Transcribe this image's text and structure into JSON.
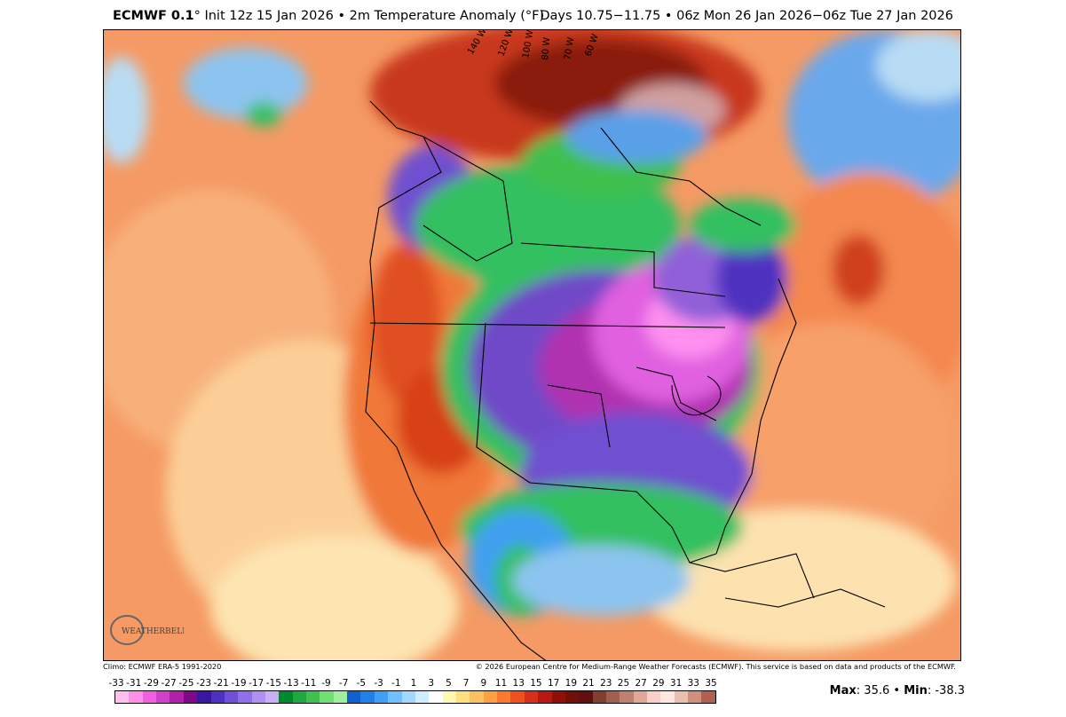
{
  "header": {
    "model": "ECMWF 0.1",
    "init_text": "° Init 12z 15 Jan 2026 • 2m Temperature Anomaly (°F)",
    "valid_text": "Days 10.75−11.75 • 06z Mon 26 Jan 2026−06z Tue 27 Jan 2026"
  },
  "footer": {
    "climo": "Climo: ECMWF ERA-5 1991-2020",
    "copyright": "© 2026 European Centre for Medium-Range Weather Forecasts (ECMWF). This service is based on data and products of the ECMWF."
  },
  "stats": {
    "max_label": "Max",
    "max_value": ": 35.6",
    "sep": " • ",
    "min_label": "Min",
    "min_value": ": -38.3"
  },
  "logo_text": "WEATHERBELL",
  "map_labels": [
    "140 W",
    "120 W",
    "100 W",
    "80 W",
    "70 W",
    "60 W"
  ],
  "colorbar": {
    "labels": [
      "-33",
      "-31",
      "-29",
      "-27",
      "-25",
      "-23",
      "-21",
      "-19",
      "-17",
      "-15",
      "-13",
      "-11",
      "-9",
      "-7",
      "-5",
      "-3",
      "-1",
      "1",
      "3",
      "5",
      "7",
      "9",
      "11",
      "13",
      "15",
      "17",
      "19",
      "21",
      "23",
      "25",
      "27",
      "29",
      "31",
      "33",
      "35"
    ],
    "colors": [
      "#ffc0f0",
      "#ff90e8",
      "#f060e0",
      "#d040c8",
      "#b020a8",
      "#800888",
      "#3818a0",
      "#5030c0",
      "#7050d8",
      "#9070e8",
      "#b090f0",
      "#c8b0f8",
      "#008830",
      "#20a840",
      "#40c050",
      "#70e070",
      "#a0f0a0",
      "#1060d0",
      "#2080e8",
      "#40a0f8",
      "#70c0ff",
      "#a0d8ff",
      "#d0ecff",
      "#ffffff",
      "#fff8b0",
      "#ffe080",
      "#ffc060",
      "#ffa040",
      "#ff7830",
      "#f05020",
      "#d83018",
      "#b81810",
      "#901008",
      "#701008",
      "#601010",
      "#804030",
      "#a06050",
      "#c08070",
      "#e0a898",
      "#f8d0c8",
      "#ffe8e0",
      "#e8c0b0",
      "#d09080",
      "#b06050"
    ],
    "fills": [
      "#ffc0f0",
      "#ff90e8",
      "#f060e0",
      "#d040c8",
      "#b020a8",
      "#800888",
      "#3818a0",
      "#5030c0",
      "#7050d8",
      "#9070e8",
      "#b090f0",
      "#c8b0f8",
      "#008830",
      "#20a840",
      "#40c050",
      "#70e070",
      "#a0f0a0",
      "#1060d0",
      "#2080e8",
      "#40a0f8",
      "#70c0ff",
      "#a0d8ff",
      "#d0ecff",
      "#ffffff",
      "#fff8b0",
      "#ffe080",
      "#ffc060",
      "#ffa040",
      "#ff7830",
      "#f05020",
      "#d83018",
      "#b81810",
      "#901008",
      "#701008",
      "#601010",
      "#804030",
      "#a06050",
      "#c08070",
      "#e0a898",
      "#f8d0c8",
      "#ffe8e0",
      "#e8c0b0",
      "#d09080",
      "#b06050"
    ]
  },
  "palette": {
    "ocean_warm": "#f79a62",
    "warm_light": "#fbc48c",
    "warm_pale": "#fde2a8",
    "hot": "#e0501e",
    "very_hot": "#9a2010",
    "cool_light": "#b8dcf4",
    "cool": "#5aa0e8",
    "cold_green": "#30c060",
    "cold_purple": "#7040c8",
    "very_cold_magenta": "#e060e0",
    "extreme_cold": "#ff90f0"
  }
}
